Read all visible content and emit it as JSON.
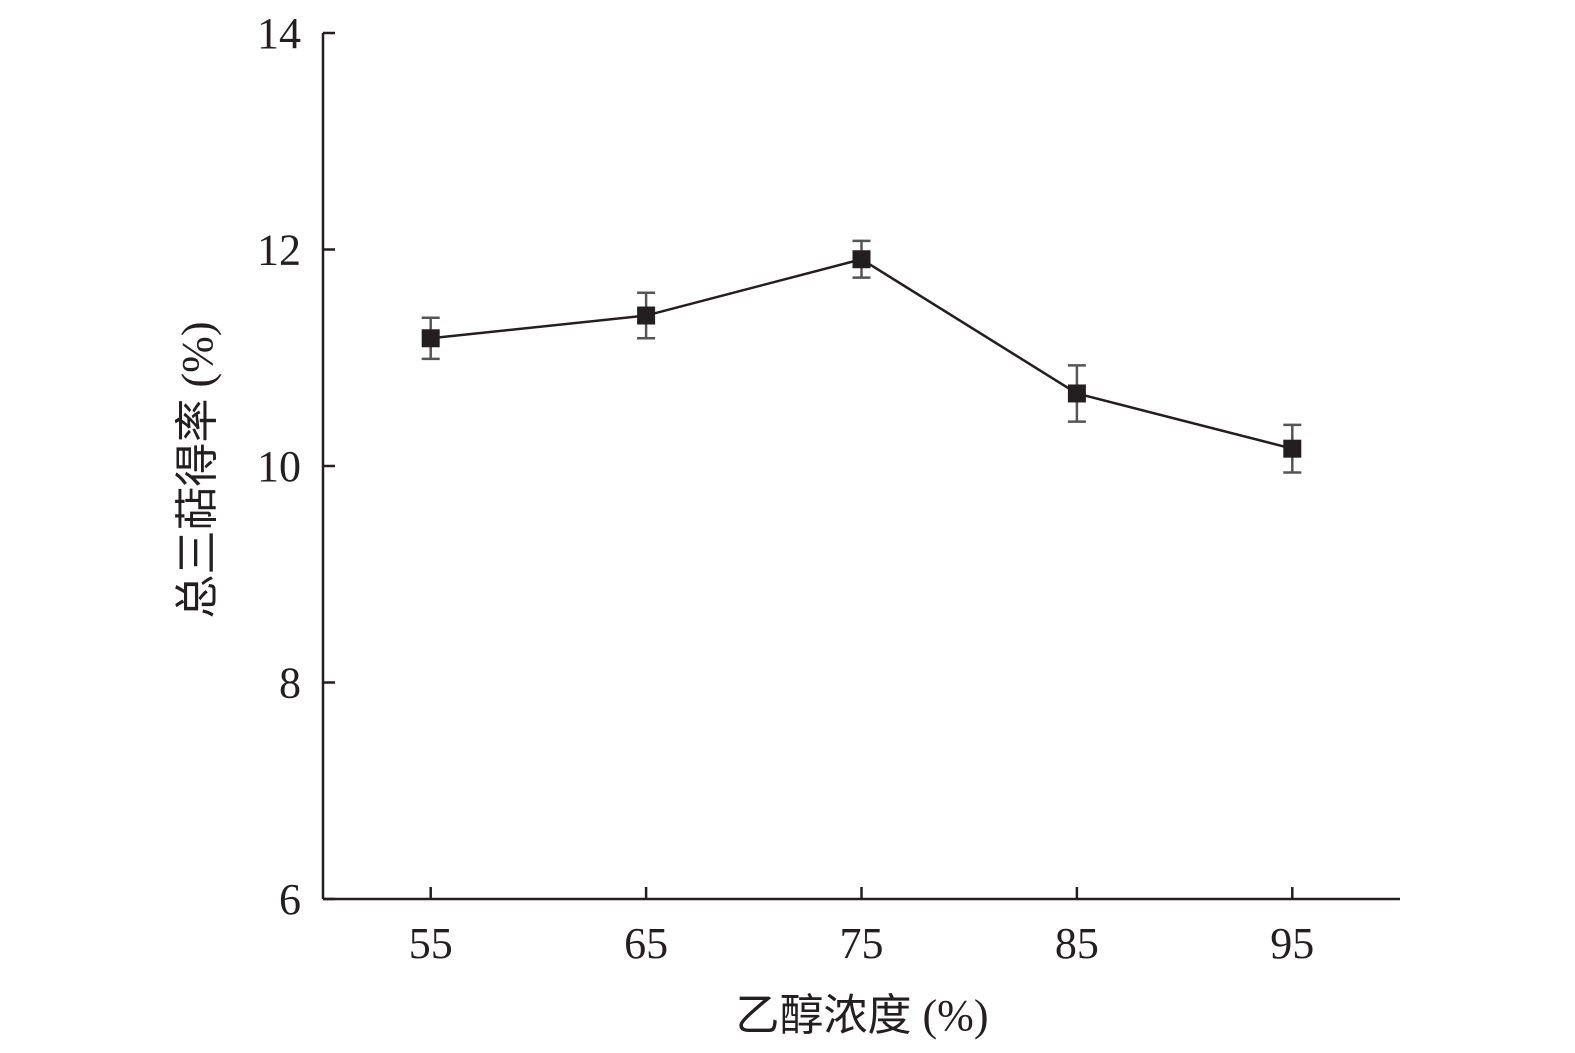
{
  "chart_data": {
    "type": "line",
    "title": "",
    "xlabel": "乙醇浓度 (%)",
    "ylabel": "总三萜得率 (%)",
    "xlim": [
      50,
      100
    ],
    "ylim": [
      6,
      14
    ],
    "x_ticks": [
      55,
      65,
      75,
      85,
      95
    ],
    "y_ticks": [
      6,
      8,
      10,
      12,
      14
    ],
    "grid": false,
    "series": [
      {
        "name": "总三萜得率",
        "marker": "square",
        "color": "#231f20",
        "x": [
          55,
          65,
          75,
          85,
          95
        ],
        "y": [
          11.18,
          11.39,
          11.91,
          10.67,
          10.16
        ],
        "error": [
          0.19,
          0.21,
          0.17,
          0.26,
          0.22
        ]
      }
    ]
  }
}
